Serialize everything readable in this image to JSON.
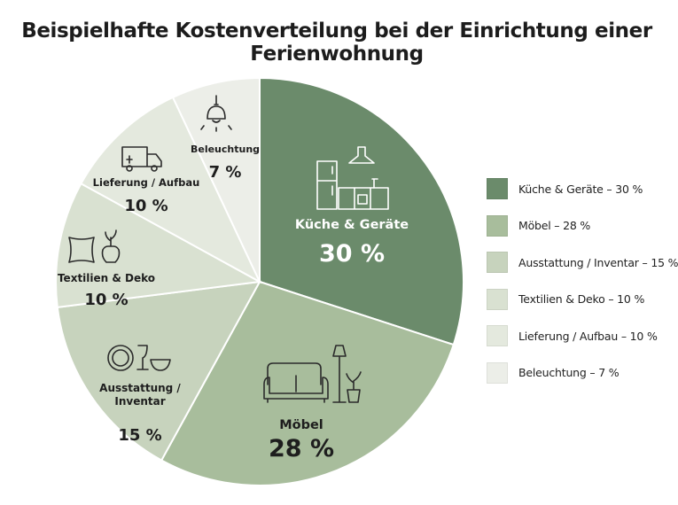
{
  "chart_data": {
    "type": "pie",
    "title": "Beispielhafte Kostenverteilung bei der Einrichtung einer Ferienwohnung",
    "slices": [
      {
        "label": "Küche & Geräte",
        "value": 30,
        "value_label": "30 %",
        "legend": "Küche & Geräte – 30 %",
        "color": "#6b8b6b",
        "text_color": "#ffffff",
        "icon": "kitchen-icon"
      },
      {
        "label": "Möbel",
        "value": 28,
        "value_label": "28 %",
        "legend": "Möbel – 28 %",
        "color": "#a8bd9c",
        "text_color": "#1e1e1e",
        "icon": "sofa-lamp-plant-icon"
      },
      {
        "label": "Ausstattung / Inventar",
        "label_lines": [
          "Ausstattung /",
          "Inventar"
        ],
        "value": 15,
        "value_label": "15 %",
        "legend": "Ausstattung / Inventar – 15 %",
        "color": "#c7d3bd",
        "text_color": "#1e1e1e",
        "icon": "tableware-icon"
      },
      {
        "label": "Textilien & Deko",
        "value": 10,
        "value_label": "10 %",
        "legend": "Textilien & Deko – 10 %",
        "color": "#d9e1d1",
        "text_color": "#1e1e1e",
        "icon": "pillow-vase-icon"
      },
      {
        "label": "Lieferung / Aufbau",
        "value": 10,
        "value_label": "10 %",
        "legend": "Lieferung / Aufbau – 10 %",
        "color": "#e4e9de",
        "text_color": "#1e1e1e",
        "icon": "delivery-truck-icon"
      },
      {
        "label": "Beleuchtung",
        "value": 7,
        "value_label": "7 %",
        "legend": "Beleuchtung – 7 %",
        "color": "#eceee8",
        "text_color": "#1e1e1e",
        "icon": "pendant-lamp-icon"
      }
    ],
    "legend_position": "right"
  }
}
